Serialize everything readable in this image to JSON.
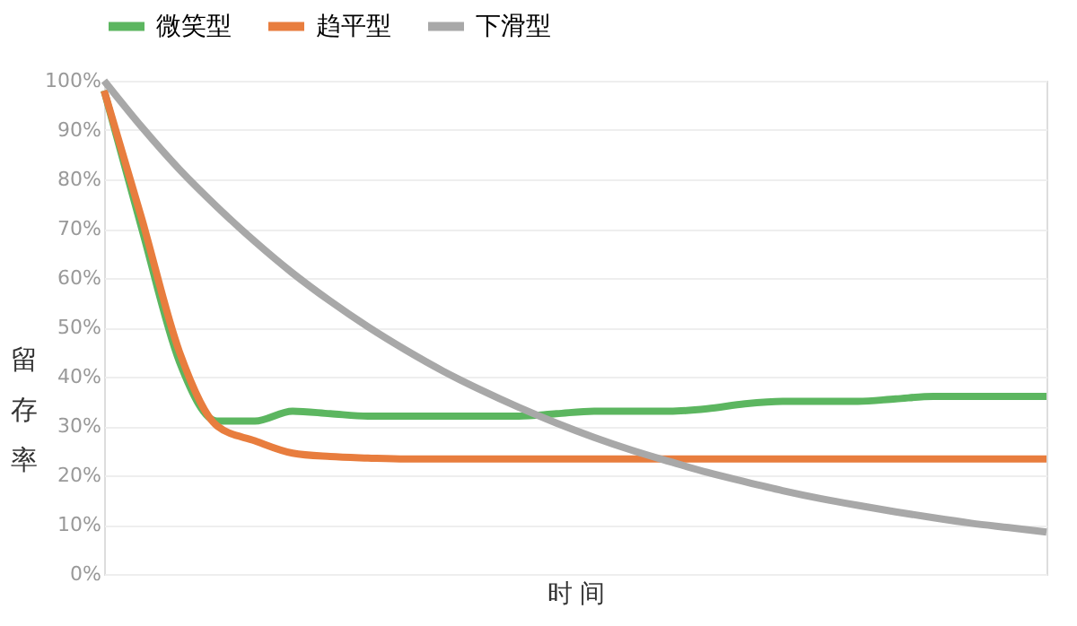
{
  "chart_data": {
    "type": "line",
    "xlabel": "时 间",
    "ylabel": "留存率",
    "categories": [
      null,
      null,
      null,
      null,
      null,
      null,
      null,
      null,
      null,
      null,
      null,
      null,
      null,
      null,
      null,
      null,
      null,
      null,
      null,
      null,
      null,
      null,
      null,
      null,
      null,
      null
    ],
    "series": [
      {
        "name": "微笑型",
        "color": "#5cb660",
        "values": [
          98,
          70,
          43,
          31,
          31,
          33,
          32.5,
          32,
          32,
          32,
          32,
          32,
          32.5,
          33,
          33,
          33,
          33.5,
          34.5,
          35,
          35,
          35,
          35.5,
          36,
          36,
          36,
          36
        ]
      },
      {
        "name": "趋平型",
        "color": "#e87d3e",
        "values": [
          98,
          72,
          45,
          30,
          27,
          24.5,
          23.8,
          23.5,
          23.3,
          23.3,
          23.3,
          23.3,
          23.3,
          23.3,
          23.3,
          23.3,
          23.3,
          23.3,
          23.3,
          23.3,
          23.3,
          23.3,
          23.3,
          23.3,
          23.3,
          23.3
        ]
      },
      {
        "name": "下滑型",
        "color": "#a8a8a8",
        "values": [
          100,
          90.6,
          82,
          74.4,
          67.4,
          61,
          55.3,
          50.1,
          45.4,
          41.1,
          37.3,
          33.8,
          30.6,
          27.7,
          25.1,
          22.8,
          20.6,
          18.7,
          16.9,
          15.3,
          13.9,
          12.6,
          11.4,
          10.3,
          9.4,
          8.5
        ]
      }
    ],
    "ylim": [
      0,
      100
    ],
    "yticks": [
      {
        "value": 0,
        "label": "0%"
      },
      {
        "value": 10,
        "label": "10%"
      },
      {
        "value": 20,
        "label": "20%"
      },
      {
        "value": 30,
        "label": "30%"
      },
      {
        "value": 40,
        "label": "40%"
      },
      {
        "value": 50,
        "label": "50%"
      },
      {
        "value": 60,
        "label": "60%"
      },
      {
        "value": 70,
        "label": "70%"
      },
      {
        "value": 80,
        "label": "80%"
      },
      {
        "value": 90,
        "label": "90%"
      },
      {
        "value": 100,
        "label": "100%"
      }
    ],
    "grid": "y",
    "legend": "top",
    "tick_labels": "y",
    "marker": "none",
    "line_style": "solid"
  }
}
